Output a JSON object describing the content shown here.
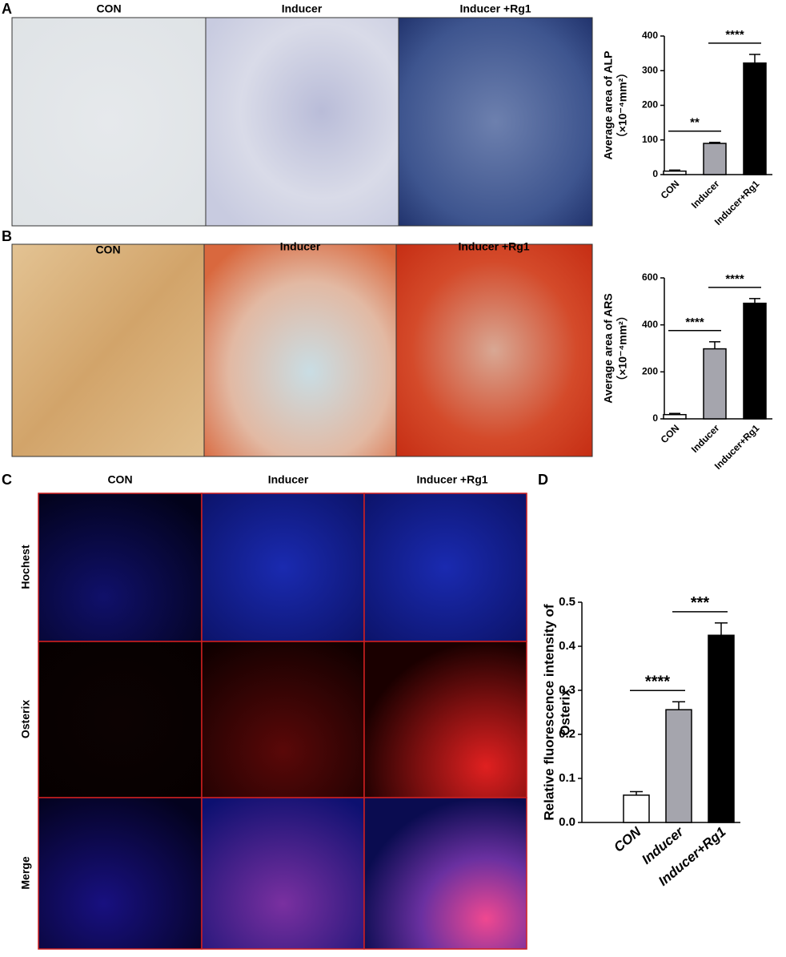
{
  "panels": [
    {
      "label": "A",
      "columns": [
        "CON",
        "Inducer",
        "Inducer +Rg1"
      ]
    },
    {
      "label": "B",
      "columns": [
        "CON",
        "Inducer",
        "Inducer +Rg1"
      ]
    },
    {
      "label": "C",
      "columns": [
        "CON",
        "Inducer",
        "Inducer +Rg1"
      ],
      "rows": [
        "Hochest",
        "Osterix",
        "Merge"
      ]
    },
    {
      "label": "D"
    }
  ],
  "chart_data": [
    {
      "type": "bar",
      "ylabel": [
        "Average area of ALP",
        "（×10⁻⁴mm²）"
      ],
      "categories": [
        "CON",
        "Inducer",
        "Inducer+Rg1"
      ],
      "values": [
        10,
        90,
        322
      ],
      "errors": [
        3,
        3,
        25
      ],
      "colors": [
        "#ffffff",
        "#a5a5ad",
        "#000000"
      ],
      "ylim": [
        0,
        400
      ],
      "yticks": [
        0,
        100,
        200,
        300,
        400
      ],
      "significance": [
        "**",
        "****"
      ]
    },
    {
      "type": "bar",
      "ylabel": [
        "Average area of ARS",
        "（×10⁻⁴mm²）"
      ],
      "categories": [
        "CON",
        "Inducer",
        "Inducer+Rg1"
      ],
      "values": [
        18,
        298,
        492
      ],
      "errors": [
        5,
        30,
        20
      ],
      "colors": [
        "#ffffff",
        "#a5a5ad",
        "#000000"
      ],
      "ylim": [
        0,
        600
      ],
      "yticks": [
        0,
        200,
        400,
        600
      ],
      "significance": [
        "****",
        "****"
      ]
    },
    {
      "type": "bar",
      "ylabel": [
        "Relative fluorescence intensity of",
        "Osterix"
      ],
      "categories": [
        "CON",
        "Inducer",
        "Inducer+Rg1"
      ],
      "values": [
        0.062,
        0.256,
        0.425
      ],
      "errors": [
        0.008,
        0.018,
        0.028
      ],
      "colors": [
        "#ffffff",
        "#a5a5ad",
        "#000000"
      ],
      "ylim": [
        0,
        0.5
      ],
      "yticks": [
        {
          "value": 0,
          "label": "0.0"
        },
        0.1,
        0.2,
        0.3,
        0.4,
        0.5
      ],
      "significance": [
        "****",
        "***"
      ]
    }
  ]
}
